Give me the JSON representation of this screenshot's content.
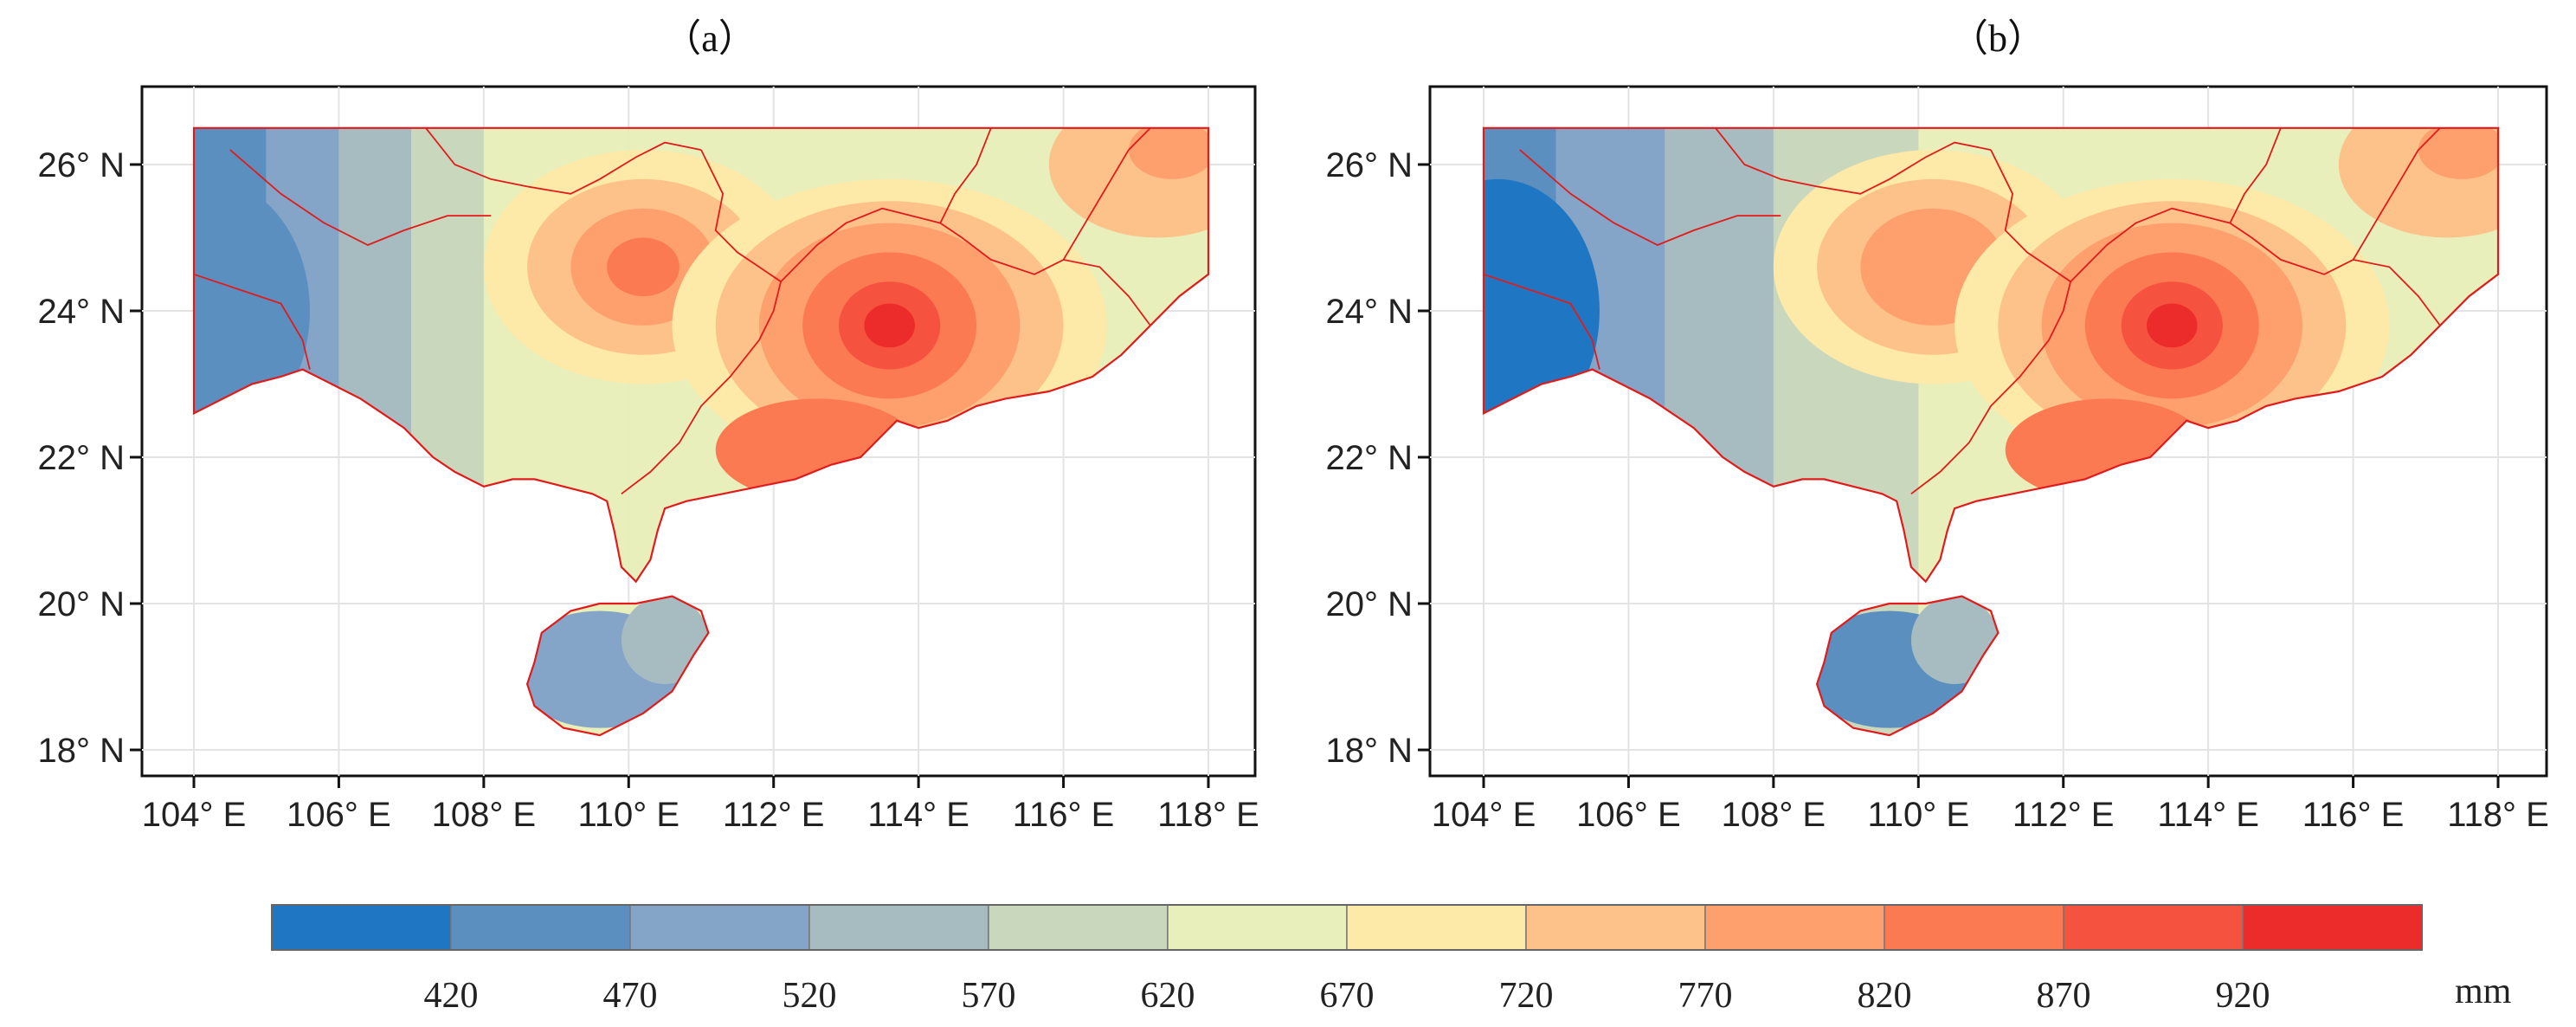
{
  "panels": [
    {
      "title": "（a）",
      "hotspot_lon": 113.6,
      "hotspot_lat": 23.8
    },
    {
      "title": "（b）",
      "hotspot_lon": 113.5,
      "hotspot_lat": 23.8
    }
  ],
  "map": {
    "lat_ticks": [
      "18° N",
      "20° N",
      "22° N",
      "24° N",
      "26° N"
    ],
    "lon_ticks": [
      "104° E",
      "106° E",
      "108° E",
      "110° E",
      "112° E",
      "114° E",
      "116° E",
      "118° E"
    ],
    "lat_range": [
      17.6,
      26.9
    ],
    "lon_range": [
      103.0,
      118.7
    ]
  },
  "colorbar": {
    "unit": "mm",
    "labels": [
      "420",
      "470",
      "520",
      "570",
      "620",
      "670",
      "720",
      "770",
      "820",
      "870",
      "920"
    ],
    "colors": [
      "#1f77c4",
      "#5a8fc0",
      "#84a4c8",
      "#a7bcc0",
      "#c9d8bc",
      "#e9efbb",
      "#fde9a8",
      "#fdc289",
      "#fda06e",
      "#fc7a52",
      "#f5533f",
      "#ec2c2a"
    ]
  }
}
